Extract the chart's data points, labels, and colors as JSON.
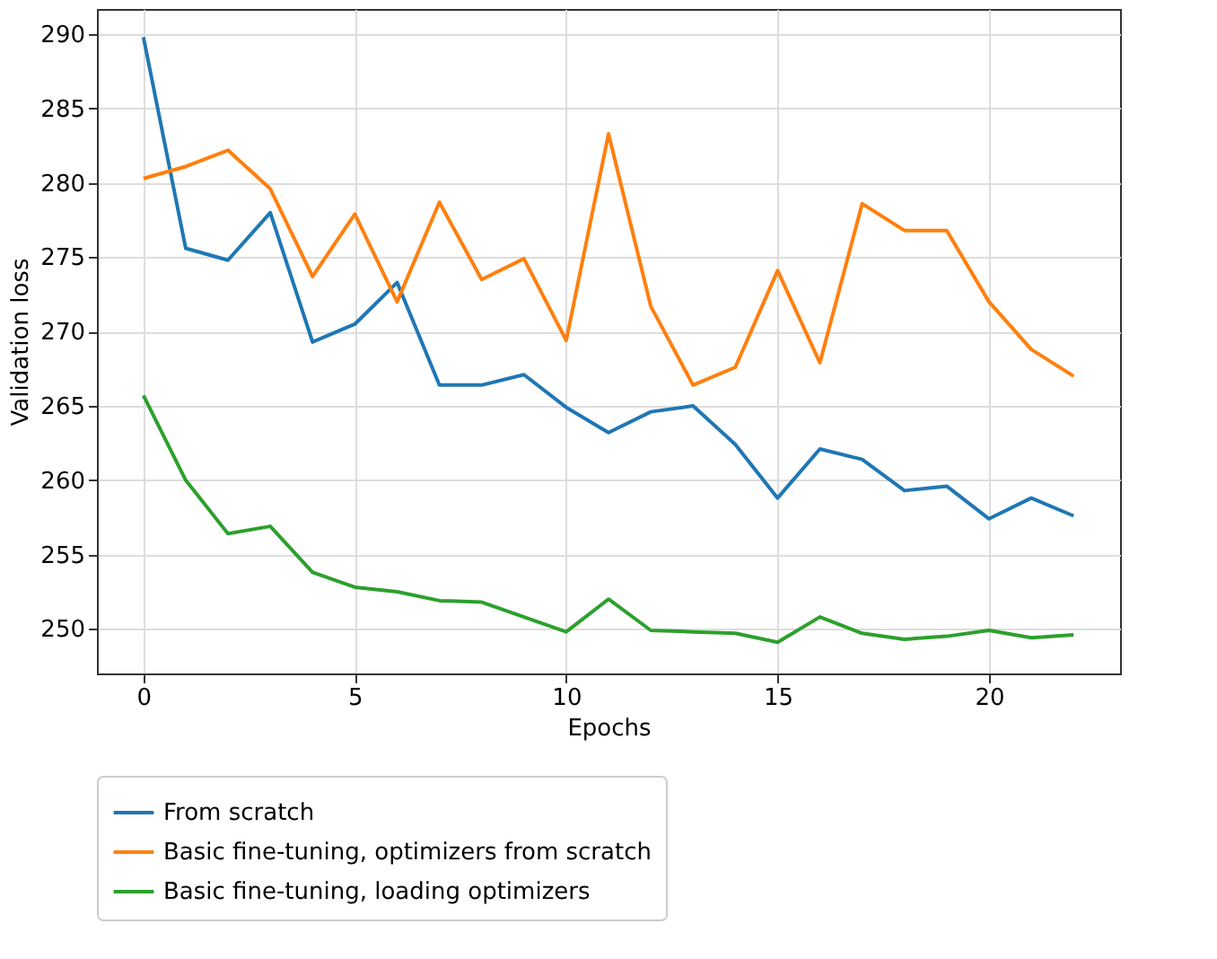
{
  "chart_data": {
    "type": "line",
    "xlabel": "Epochs",
    "ylabel": "Validation loss",
    "x": [
      0,
      1,
      2,
      3,
      4,
      5,
      6,
      7,
      8,
      9,
      10,
      11,
      12,
      13,
      14,
      15,
      16,
      17,
      18,
      19,
      20,
      21,
      22
    ],
    "series": [
      {
        "name": "From scratch",
        "color": "#1f77b4",
        "values": [
          289.8,
          275.6,
          274.8,
          278,
          269.3,
          270.5,
          273.3,
          266.4,
          266.4,
          267.1,
          264.9,
          263.2,
          264.6,
          265,
          262.4,
          258.8,
          262.1,
          261.4,
          259.3,
          259.6,
          257.4,
          258.8,
          257.6
        ]
      },
      {
        "name": "Basic fine-tuning, optimizers from scratch",
        "color": "#ff7f0e",
        "values": [
          280.3,
          281.1,
          282.2,
          279.6,
          273.7,
          277.9,
          272,
          278.7,
          273.5,
          274.9,
          269.4,
          283.3,
          271.7,
          266.4,
          267.6,
          274.1,
          267.9,
          278.6,
          276.8,
          276.8,
          272,
          268.8,
          267
        ]
      },
      {
        "name": "Basic fine-tuning, loading optimizers",
        "color": "#2ca02c",
        "values": [
          265.7,
          260,
          256.4,
          256.9,
          253.8,
          252.8,
          252.5,
          251.9,
          251.8,
          250.8,
          249.8,
          252,
          249.9,
          249.8,
          249.7,
          249.1,
          250.8,
          249.7,
          249.3,
          249.5,
          249.9,
          249.4,
          249.6
        ]
      }
    ],
    "xlim": [
      -1.1,
      23.1
    ],
    "ylim": [
      247,
      291.7
    ],
    "xticks": [
      0,
      5,
      10,
      15,
      20
    ],
    "yticks": [
      250,
      255,
      260,
      265,
      270,
      275,
      280,
      285,
      290
    ],
    "grid": true,
    "legend": "bottom",
    "marker": "none",
    "line_style": "solid"
  }
}
